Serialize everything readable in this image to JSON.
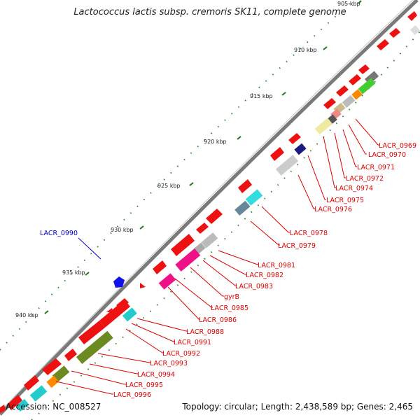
{
  "title": "Lactococcus lactis subsp. cremoris SK11, complete genome",
  "footer": {
    "accession": "Accession: NC_008527",
    "topology": "Topology: circular; Length: 2,438,589 bp; Genes: 2,465"
  },
  "colors": {
    "backbone": "#7a7a7a",
    "gene": "#ee1111",
    "tick": "#1a7a1a",
    "label": "#dd0000",
    "highlight_label": "#0000cc"
  },
  "ticks": [
    "905 kbp",
    "910 kbp",
    "915 kbp",
    "920 kbp",
    "925 kbp",
    "930 kbp",
    "935 kbp",
    "940 kbp"
  ],
  "gene_labels": [
    "LACR_0969",
    "LACR_0970",
    "LACR_0971",
    "LACR_0972",
    "LACR_0974",
    "LACR_0975",
    "LACR_0976",
    "LACR_0978",
    "LACR_0979",
    "LACR_0981",
    "LACR_0982",
    "LACR_0983",
    "gyrB",
    "LACR_0985",
    "LACR_0986",
    "LACR_0988",
    "LACR_0991",
    "LACR_0992",
    "LACR_0993",
    "LACR_0994",
    "LACR_0995",
    "LACR_0996"
  ],
  "highlight_label": "LACR_0990"
}
